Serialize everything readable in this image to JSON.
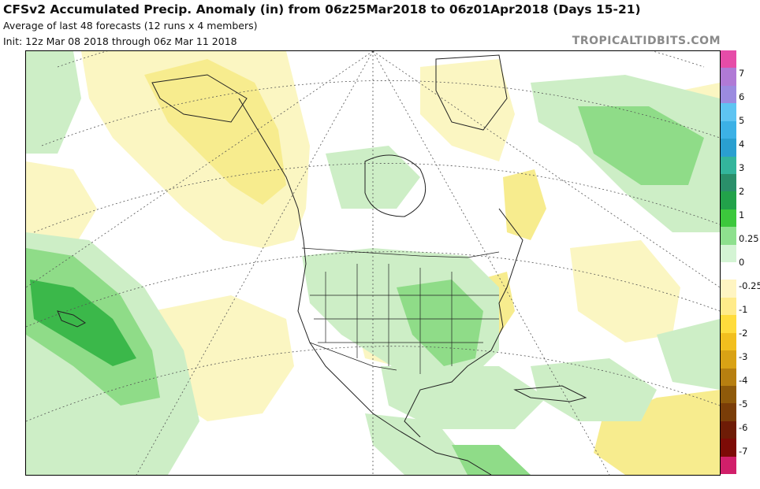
{
  "header": {
    "title": "CFSv2 Accumulated Precip. Anomaly (in) from 06z25Mar2018 to 06z01Apr2018 (Days 15-21)",
    "subtitle": "Average of last 48 forecasts (12 runs x 4 members)",
    "init": "Init: 12z Mar 08 2018 through 06z Mar 11 2018",
    "brand": "TROPICALTIDBITS.COM"
  },
  "colorbar": {
    "colors": [
      "#e64ca8",
      "#b07ad6",
      "#9b8be0",
      "#5ec4f2",
      "#3cb1e6",
      "#2a9fd0",
      "#33b59c",
      "#2a8f6a",
      "#22a24a",
      "#3cc83c",
      "#8ee08e",
      "#d4f4d4",
      "#ffffff",
      "#fff5c2",
      "#ffeb8a",
      "#ffdc3c",
      "#f2bf1e",
      "#d9a215",
      "#b77f10",
      "#8f5a0a",
      "#7a3d08",
      "#6e1c06",
      "#7d0b06",
      "#d11f6a"
    ],
    "labels": [
      {
        "text": "7",
        "slot": 1
      },
      {
        "text": "6",
        "slot": 2
      },
      {
        "text": "5",
        "slot": 3
      },
      {
        "text": "4",
        "slot": 4
      },
      {
        "text": "3",
        "slot": 5
      },
      {
        "text": "2",
        "slot": 6
      },
      {
        "text": "1",
        "slot": 7
      },
      {
        "text": "0.25",
        "slot": 8
      },
      {
        "text": "0",
        "slot": 9
      },
      {
        "text": "-0.25",
        "slot": 10
      },
      {
        "text": "-1",
        "slot": 11
      },
      {
        "text": "-2",
        "slot": 12
      },
      {
        "text": "-3",
        "slot": 13
      },
      {
        "text": "-4",
        "slot": 14
      },
      {
        "text": "-5",
        "slot": 15
      },
      {
        "text": "-6",
        "slot": 16
      },
      {
        "text": "-7",
        "slot": 17
      }
    ]
  },
  "map": {
    "colors": {
      "wet_light": "#cdeec6",
      "wet_mid": "#8fdc88",
      "wet_dark": "#3bb84a",
      "dry_light": "#fbf6c2",
      "dry_mid": "#f7ec8e",
      "dry_dark": "#f0d84a",
      "lines": "#222222"
    }
  }
}
